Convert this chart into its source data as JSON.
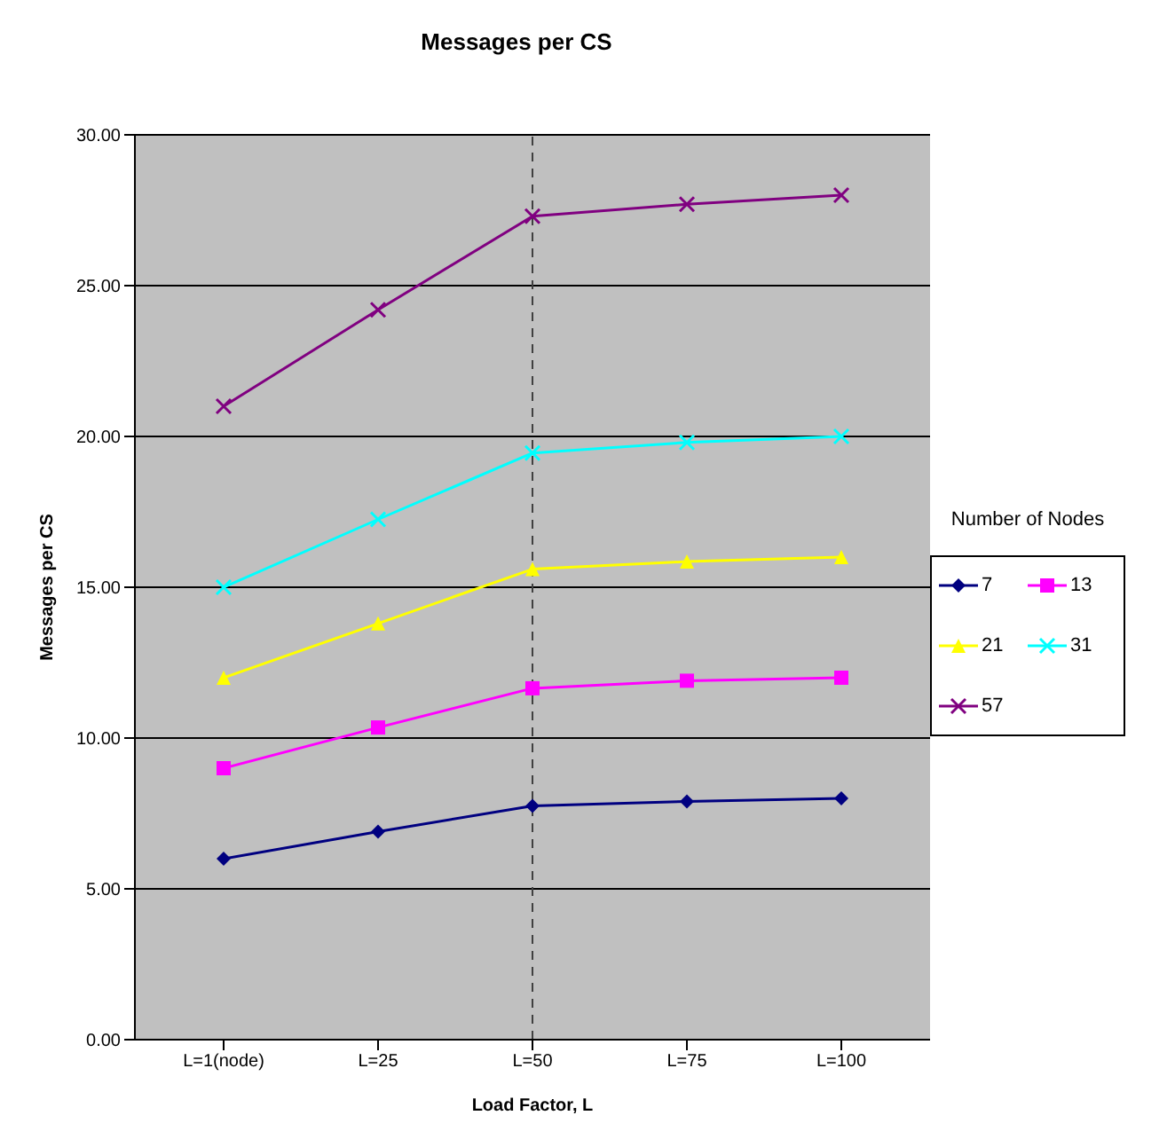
{
  "chart_data": {
    "type": "line",
    "title": "Messages per CS",
    "xlabel": "Load Factor, L",
    "ylabel": "Messages per CS",
    "legend_title": "Number of Nodes",
    "categories": [
      "L=1(node)",
      "L=25",
      "L=50",
      "L=75",
      "L=100"
    ],
    "series": [
      {
        "name": "7",
        "color": "#000080",
        "marker": "diamond",
        "values": [
          6.0,
          6.9,
          7.75,
          7.9,
          8.0
        ]
      },
      {
        "name": "13",
        "color": "#ff00ff",
        "marker": "square",
        "values": [
          9.0,
          10.35,
          11.65,
          11.9,
          12.0
        ]
      },
      {
        "name": "21",
        "color": "#ffff00",
        "marker": "triangle",
        "values": [
          12.0,
          13.8,
          15.6,
          15.85,
          16.0
        ]
      },
      {
        "name": "31",
        "color": "#00ffff",
        "marker": "cross",
        "values": [
          15.0,
          17.25,
          19.45,
          19.8,
          20.0
        ]
      },
      {
        "name": "57",
        "color": "#800080",
        "marker": "cross",
        "values": [
          21.0,
          24.2,
          27.3,
          27.7,
          28.0
        ]
      }
    ],
    "ylim": [
      0,
      30
    ],
    "yticks": [
      {
        "value": 0,
        "label": "0.00"
      },
      {
        "value": 5,
        "label": "5.00"
      },
      {
        "value": 10,
        "label": "10.00"
      },
      {
        "value": 15,
        "label": "15.00"
      },
      {
        "value": 20,
        "label": "20.00"
      },
      {
        "value": 25,
        "label": "25.00"
      },
      {
        "value": 30,
        "label": "30.00"
      }
    ],
    "grid": "y",
    "legend": "right",
    "ref_lines": [
      {
        "axis": "x",
        "value": "L=50",
        "line_style": "dashed",
        "color": "#404040"
      }
    ]
  }
}
